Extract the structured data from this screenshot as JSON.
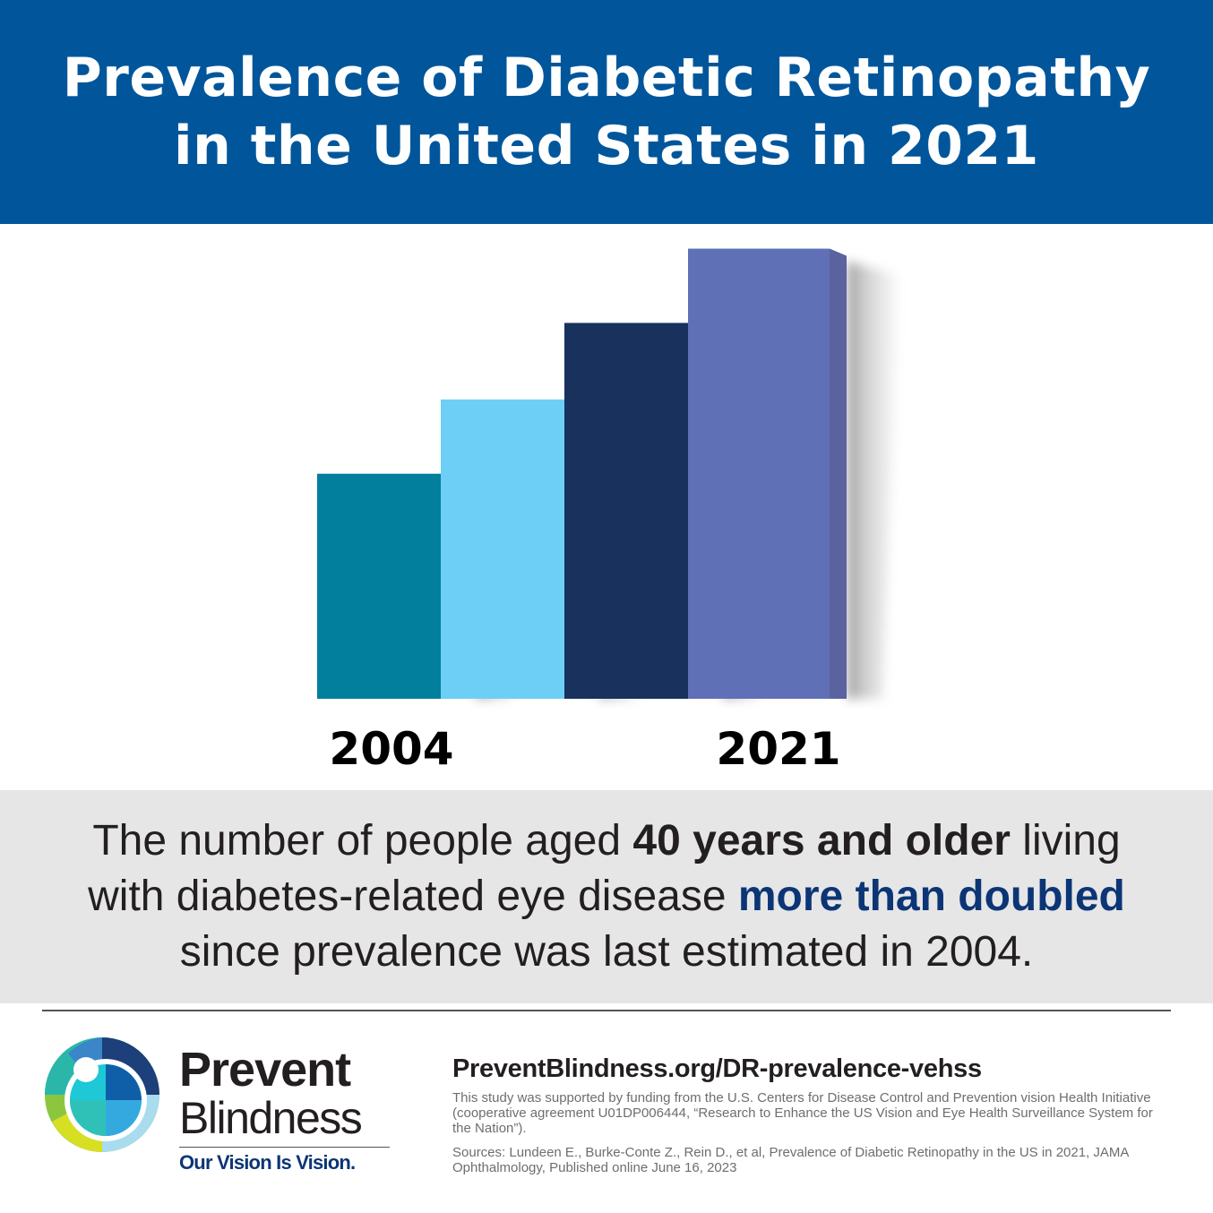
{
  "header": {
    "title_line1": "Prevalence of Diabetic Retinopathy",
    "title_line2": "in the United States in 2021"
  },
  "chart_data": {
    "type": "bar",
    "title": "Prevalence of Diabetic Retinopathy in the United States in 2021",
    "categories": [
      "2004",
      "",
      "",
      "2021"
    ],
    "values": [
      1,
      1.33,
      1.67,
      2
    ],
    "ylim": [
      0,
      2.05
    ],
    "colors": [
      "#017f9c",
      "#6dcff6",
      "#18315d",
      "#6070b6"
    ],
    "side_colors": [
      "#015f77",
      "#56a8c8",
      "#0f2344",
      "#5a63a0"
    ],
    "x_tick_labels": [
      "2004",
      "2021"
    ],
    "note": "bars are unlabeled relative heights; rises to more than double"
  },
  "summary": {
    "line1_a": "The number of people aged ",
    "line1_b": "40 years and older",
    "line1_c": " living",
    "line2_a": "with diabetes-related eye disease ",
    "line2_b": "more than doubled",
    "line3": "since prevalence was last estimated in 2004."
  },
  "brand": {
    "name1": "Prevent",
    "name2": "Blindness",
    "tagline": "Our Vision Is Vision."
  },
  "footer": {
    "url": "PreventBlindness.org/DR-prevalence-vehss",
    "funding": "This study was supported by funding from the U.S. Centers for Disease Control and Prevention vision Health Initiative (cooperative agreement U01DP006444, “Research to Enhance the US Vision and Eye Health Surveillance System for the Nation”).",
    "sources": "Sources: Lundeen E., Burke-Conte Z., Rein D., et al, Prevalence of Diabetic Retinopathy in the US in 2021, JAMA Ophthalmology, Published online June 16, 2023"
  },
  "colors": {
    "header_bg": "#01569b",
    "summary_bg": "#e6e6e7",
    "highlight": "#0c3575"
  }
}
